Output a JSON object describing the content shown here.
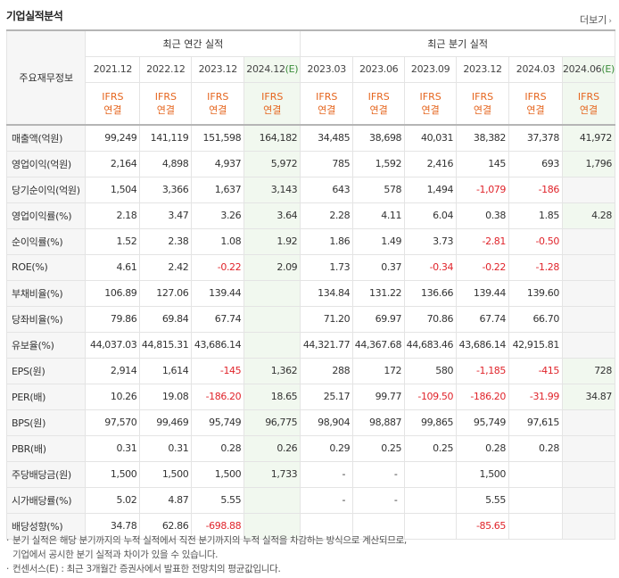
{
  "section_title": "기업실적분석",
  "more_label": "더보기",
  "row_header": "주요재무정보",
  "group_headers": {
    "annual": "최근 연간 실적",
    "quarterly": "최근 분기 실적"
  },
  "periods": [
    {
      "label": "2021.12",
      "est": ""
    },
    {
      "label": "2022.12",
      "est": ""
    },
    {
      "label": "2023.12",
      "est": ""
    },
    {
      "label": "2024.12",
      "est": "(E)"
    },
    {
      "label": "2023.03",
      "est": ""
    },
    {
      "label": "2023.06",
      "est": ""
    },
    {
      "label": "2023.09",
      "est": ""
    },
    {
      "label": "2023.12",
      "est": ""
    },
    {
      "label": "2024.03",
      "est": ""
    },
    {
      "label": "2024.06",
      "est": "(E)"
    }
  ],
  "ifrs": {
    "line1": "IFRS",
    "line2": "연결"
  },
  "rows": [
    {
      "label": "매출액(억원)",
      "values": [
        "99,249",
        "141,119",
        "151,598",
        "164,182",
        "34,485",
        "38,698",
        "40,031",
        "38,382",
        "37,378",
        "41,972"
      ],
      "sep": true
    },
    {
      "label": "영업이익(억원)",
      "values": [
        "2,164",
        "4,898",
        "4,937",
        "5,972",
        "785",
        "1,592",
        "2,416",
        "145",
        "693",
        "1,796"
      ]
    },
    {
      "label": "당기순이익(억원)",
      "values": [
        "1,504",
        "3,366",
        "1,637",
        "3,143",
        "643",
        "578",
        "1,494",
        "-1,079",
        "-186",
        ""
      ]
    },
    {
      "label": "영업이익률(%)",
      "values": [
        "2.18",
        "3.47",
        "3.26",
        "3.64",
        "2.28",
        "4.11",
        "6.04",
        "0.38",
        "1.85",
        "4.28"
      ],
      "sep": true
    },
    {
      "label": "순이익률(%)",
      "values": [
        "1.52",
        "2.38",
        "1.08",
        "1.92",
        "1.86",
        "1.49",
        "3.73",
        "-2.81",
        "-0.50",
        ""
      ]
    },
    {
      "label": "ROE(%)",
      "values": [
        "4.61",
        "2.42",
        "-0.22",
        "2.09",
        "1.73",
        "0.37",
        "-0.34",
        "-0.22",
        "-1.28",
        ""
      ]
    },
    {
      "label": "부채비율(%)",
      "values": [
        "106.89",
        "127.06",
        "139.44",
        "",
        "134.84",
        "131.22",
        "136.66",
        "139.44",
        "139.60",
        ""
      ],
      "sep": true
    },
    {
      "label": "당좌비율(%)",
      "values": [
        "79.86",
        "69.84",
        "67.74",
        "",
        "71.20",
        "69.97",
        "70.86",
        "67.74",
        "66.70",
        ""
      ]
    },
    {
      "label": "유보율(%)",
      "values": [
        "44,037.03",
        "44,815.31",
        "43,686.14",
        "",
        "44,321.77",
        "44,367.68",
        "44,683.46",
        "43,686.14",
        "42,915.81",
        ""
      ]
    },
    {
      "label": "EPS(원)",
      "values": [
        "2,914",
        "1,614",
        "-145",
        "1,362",
        "288",
        "172",
        "580",
        "-1,185",
        "-415",
        "728"
      ],
      "sep": true
    },
    {
      "label": "PER(배)",
      "values": [
        "10.26",
        "19.08",
        "-186.20",
        "18.65",
        "25.17",
        "99.77",
        "-109.50",
        "-186.20",
        "-31.99",
        "34.87"
      ]
    },
    {
      "label": "BPS(원)",
      "values": [
        "97,570",
        "99,469",
        "95,749",
        "96,775",
        "98,904",
        "98,887",
        "99,865",
        "95,749",
        "97,615",
        ""
      ]
    },
    {
      "label": "PBR(배)",
      "values": [
        "0.31",
        "0.31",
        "0.28",
        "0.26",
        "0.29",
        "0.25",
        "0.25",
        "0.28",
        "0.28",
        ""
      ]
    },
    {
      "label": "주당배당금(원)",
      "values": [
        "1,500",
        "1,500",
        "1,500",
        "1,733",
        "-",
        "-",
        "",
        "1,500",
        "",
        ""
      ],
      "sep": true
    },
    {
      "label": "시가배당률(%)",
      "values": [
        "5.02",
        "4.87",
        "5.55",
        "",
        "-",
        "-",
        "",
        "5.55",
        "",
        ""
      ]
    },
    {
      "label": "배당성향(%)",
      "values": [
        "34.78",
        "62.86",
        "-698.88",
        "",
        "",
        "",
        "",
        "-85.65",
        "",
        ""
      ]
    }
  ],
  "notes": [
    "분기 실적은 해당 분기까지의 누적 실적에서 직전 분기까지의 누적 실적을 차감하는 방식으로 계산되므로,\n기업에서 공시한 분기 실적과 차이가 있을 수 있습니다.",
    "컨센서스(E) : 최근 3개월간 증권사에서 발표한 전망치의 평균값입니다."
  ],
  "colors": {
    "ifrs": "#e5651e",
    "negative": "#e0242b",
    "estimate_bg": "#f1f8ef",
    "estimate_tag": "#3a8c3a"
  }
}
